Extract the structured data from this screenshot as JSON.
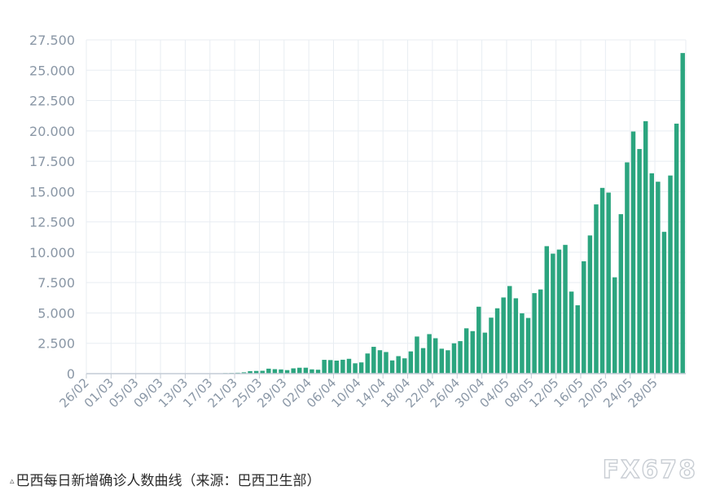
{
  "chart_data": {
    "type": "bar",
    "title": "",
    "xlabel": "",
    "ylabel": "",
    "ylim": [
      0,
      27500
    ],
    "yticks": [
      "0",
      "2.500",
      "5.000",
      "7.500",
      "10.000",
      "12.500",
      "15.000",
      "17.500",
      "20.000",
      "22.500",
      "25.000",
      "27.500"
    ],
    "ytick_values": [
      0,
      2500,
      5000,
      7500,
      10000,
      12500,
      15000,
      17500,
      20000,
      22500,
      25000,
      27500
    ],
    "xtick_labels": [
      "26/02",
      "01/03",
      "05/03",
      "09/03",
      "13/03",
      "17/03",
      "21/03",
      "25/03",
      "29/03",
      "02/04",
      "06/04",
      "10/04",
      "14/04",
      "18/04",
      "22/04",
      "26/04",
      "30/04",
      "04/05",
      "08/05",
      "12/05",
      "16/05",
      "20/05",
      "24/05",
      "28/05"
    ],
    "grid": true,
    "bar_color": "#2ba57f",
    "values": [
      1,
      0,
      0,
      0,
      0,
      0,
      0,
      0,
      0,
      0,
      5,
      0,
      0,
      5,
      4,
      0,
      4,
      3,
      5,
      13,
      24,
      31,
      48,
      58,
      74,
      108,
      204,
      221,
      235,
      410,
      369,
      346,
      290,
      435,
      487,
      489,
      352,
      323,
      1138,
      1119,
      1074,
      1146,
      1222,
      852,
      926,
      1661,
      2210,
      1930,
      1781,
      1089,
      1442,
      1261,
      1832,
      3058,
      2105,
      3257,
      2917,
      2055,
      1927,
      2498,
      2678,
      3735,
      3503,
      5514,
      3379,
      4613,
      5385,
      6276,
      7218,
      6209,
      4970,
      4588,
      6633,
      6935,
      10503,
      9888,
      10222,
      10611,
      6760,
      5632,
      9258,
      11385,
      13944,
      15305,
      14919,
      7938,
      13140,
      17408,
      19951,
      18508,
      20803,
      16508,
      15813,
      11687,
      16324,
      20599,
      26417
    ]
  },
  "caption": {
    "marker": "▵",
    "text": "巴西每日新增确诊人数曲线（来源：巴西卫生部）"
  },
  "watermark": "FX678"
}
